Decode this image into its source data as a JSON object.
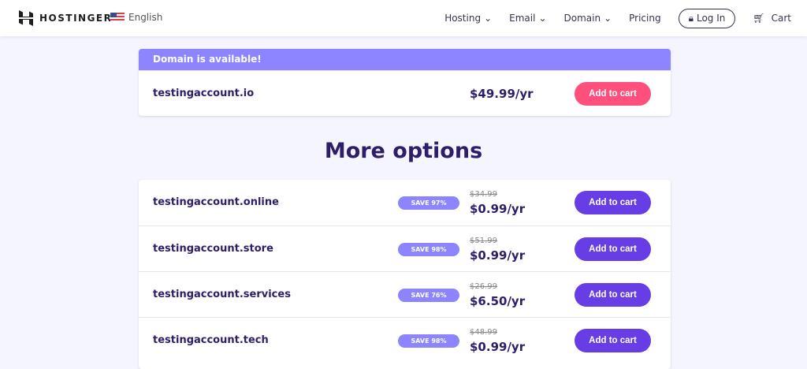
{
  "header": {
    "brand": "HOSTINGER",
    "language": "English",
    "nav": [
      {
        "label": "Hosting"
      },
      {
        "label": "Email"
      },
      {
        "label": "Domain"
      },
      {
        "label": "Pricing"
      }
    ],
    "login": "Log In",
    "cart": "Cart"
  },
  "available": {
    "banner": "Domain is available!",
    "domain": "testingaccount.io",
    "price": "$49.99/yr",
    "button": "Add to cart",
    "button_color": "#ff4f7d"
  },
  "more": {
    "title": "More options",
    "items": [
      {
        "domain": "testingaccount.online",
        "badge": "SAVE 97%",
        "old_price": "$34.99",
        "price": "$0.99/yr",
        "button": "Add to cart"
      },
      {
        "domain": "testingaccount.store",
        "badge": "SAVE 98%",
        "old_price": "$51.99",
        "price": "$0.99/yr",
        "button": "Add to cart"
      },
      {
        "domain": "testingaccount.services",
        "badge": "SAVE 76%",
        "old_price": "$26.99",
        "price": "$6.50/yr",
        "button": "Add to cart"
      },
      {
        "domain": "testingaccount.tech",
        "badge": "SAVE 98%",
        "old_price": "$48.99",
        "price": "$0.99/yr",
        "button": "Add to cart"
      }
    ]
  },
  "colors": {
    "primary": "#673de6",
    "banner": "#8c85ff",
    "text": "#2f1c6a"
  }
}
